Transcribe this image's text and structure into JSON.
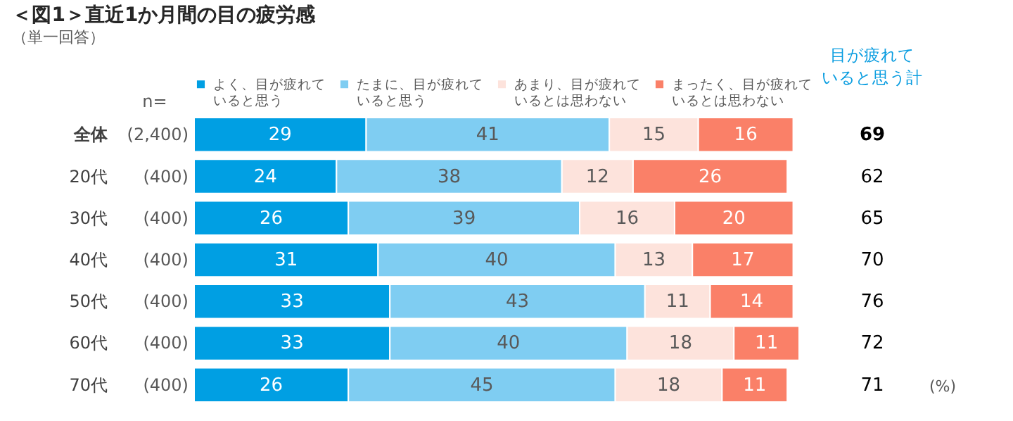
{
  "chart_data": {
    "type": "bar",
    "orientation": "horizontal",
    "stacked": true,
    "data_labels": true,
    "title": "＜図1＞直近1か月間の目の疲労感",
    "subtitle": "（単一回答）",
    "categories": [
      "全体",
      "20代",
      "30代",
      "40代",
      "50代",
      "60代",
      "70代"
    ],
    "series": [
      {
        "name": "よく、目が疲れていると思う",
        "color": "#009fe3",
        "values": [
          29,
          24,
          26,
          31,
          33,
          33,
          26
        ]
      },
      {
        "name": "たまに、目が疲れていると思う",
        "color": "#7fcdf2",
        "values": [
          41,
          38,
          39,
          40,
          43,
          40,
          45
        ]
      },
      {
        "name": "あまり、目が疲れているとは思わない",
        "color": "#fde3dc",
        "values": [
          15,
          12,
          16,
          13,
          11,
          18,
          18
        ]
      },
      {
        "name": "まったく、目が疲れているとは思わない",
        "color": "#fa8068",
        "values": [
          16,
          26,
          20,
          17,
          14,
          11,
          11
        ]
      }
    ],
    "legend": "top",
    "annotations": [
      "n=",
      "目が疲れていると思う計",
      "(%)",
      "(2,400)",
      "(400)",
      "(400)",
      "(400)",
      "(400)",
      "(400)",
      "(400)",
      "69",
      "62",
      "65",
      "70",
      "76",
      "72",
      "71"
    ]
  }
}
